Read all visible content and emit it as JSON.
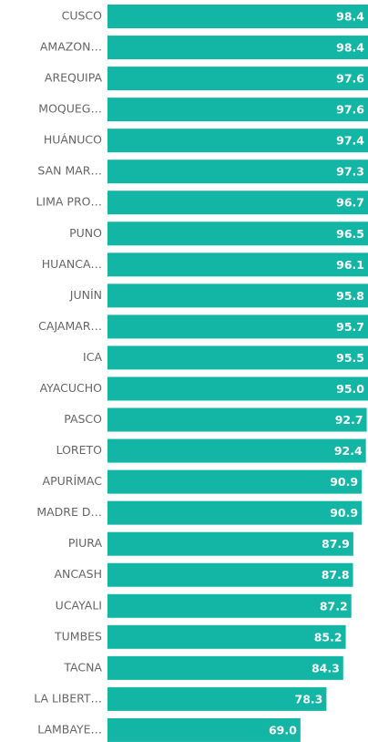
{
  "chart_data": {
    "type": "barh",
    "categories": [
      "CUSCO",
      "AMAZON…",
      "AREQUIPA",
      "MOQUEG…",
      "HUÁNUCO",
      "SAN MAR…",
      "LIMA PRO…",
      "PUNO",
      "HUANCA…",
      "JUNÍN",
      "CAJAMAR…",
      "ICA",
      "AYACUCHO",
      "PASCO",
      "LORETO",
      "APURÍMAC",
      "MADRE D…",
      "PIURA",
      "ANCASH",
      "UCAYALI",
      "TUMBES",
      "TACNA",
      "LA LIBERT…",
      "LAMBAYE…"
    ],
    "values": [
      98.4,
      98.4,
      97.6,
      97.6,
      97.4,
      97.3,
      96.7,
      96.5,
      96.1,
      95.8,
      95.7,
      95.5,
      95.0,
      92.7,
      92.4,
      90.9,
      90.9,
      87.9,
      87.8,
      87.2,
      85.2,
      84.3,
      78.3,
      69.0
    ],
    "value_labels": [
      "98.4",
      "98.4",
      "97.6",
      "97.6",
      "97.4",
      "97.3",
      "96.7",
      "96.5",
      "96.1",
      "95.8",
      "95.7",
      "95.5",
      "95.0",
      "92.7",
      "92.4",
      "90.9",
      "90.9",
      "87.9",
      "87.8",
      "87.2",
      "85.2",
      "84.3",
      "78.3",
      "69.0"
    ],
    "color": "#13b5a5",
    "xlim": [
      0,
      100
    ]
  }
}
